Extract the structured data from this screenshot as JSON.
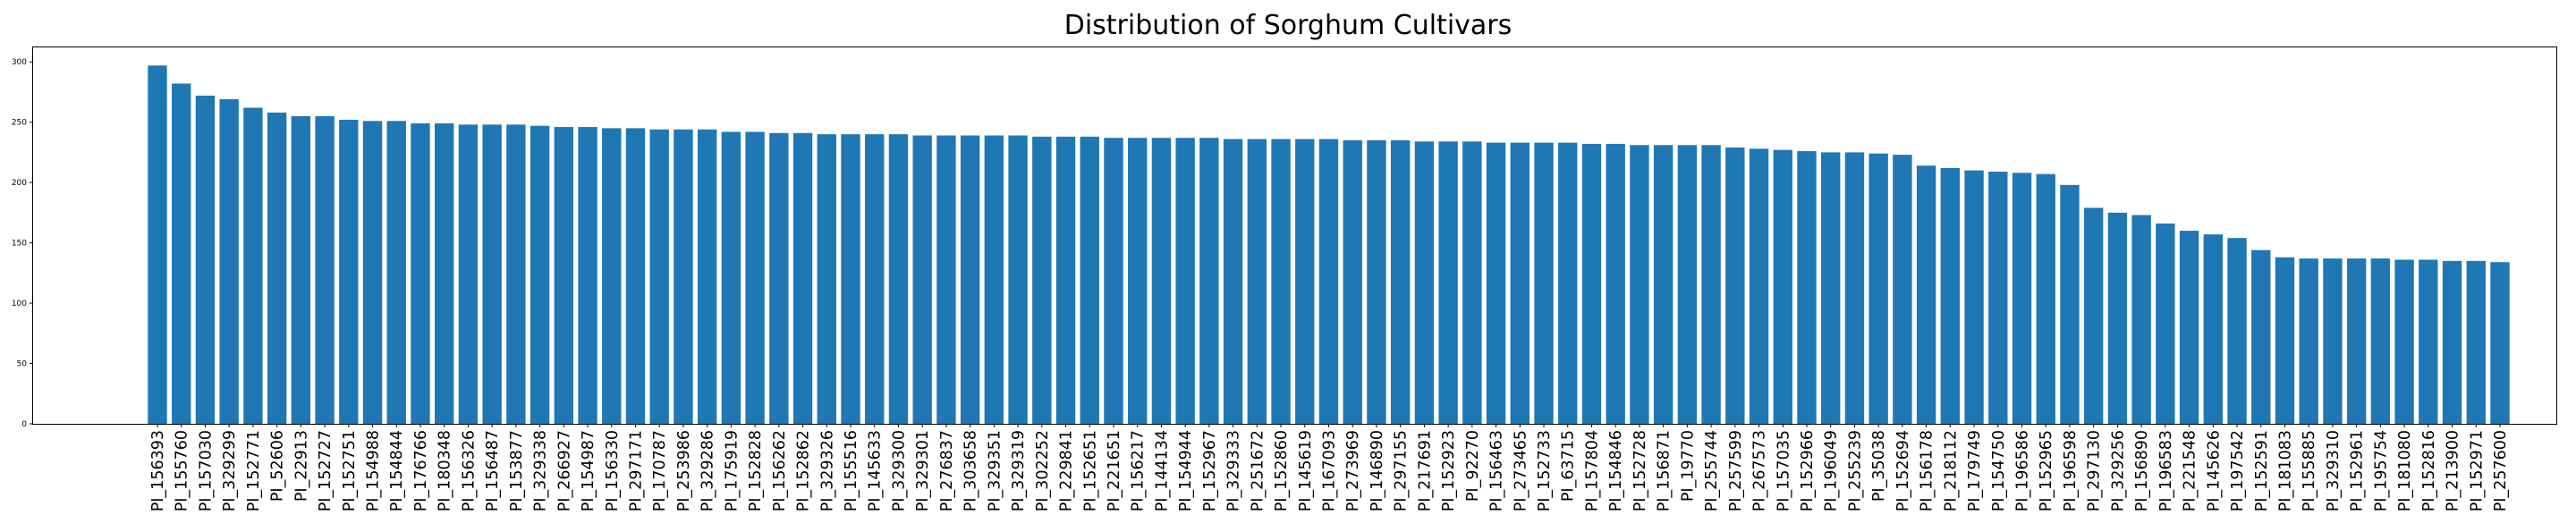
{
  "chart_data": {
    "type": "bar",
    "title": "Distribution of Sorghum Cultivars",
    "xlabel": "",
    "ylabel": "",
    "ylim": [
      0,
      312
    ],
    "yticks": [
      0,
      50,
      100,
      150,
      200,
      250,
      300
    ],
    "grid": false,
    "legend": "none",
    "bar_color": "#1f77b4",
    "categories": [
      "PI_156393",
      "PI_155760",
      "PI_157030",
      "PI_329299",
      "PI_152771",
      "PI_52606",
      "PI_22913",
      "PI_152727",
      "PI_152751",
      "PI_154988",
      "PI_154844",
      "PI_176766",
      "PI_180348",
      "PI_156326",
      "PI_156487",
      "PI_153877",
      "PI_329338",
      "PI_266927",
      "PI_154987",
      "PI_156330",
      "PI_297171",
      "PI_170787",
      "PI_253986",
      "PI_329286",
      "PI_175919",
      "PI_152828",
      "PI_156262",
      "PI_152862",
      "PI_329326",
      "PI_155516",
      "PI_145633",
      "PI_329300",
      "PI_329301",
      "PI_276837",
      "PI_303658",
      "PI_329351",
      "PI_329319",
      "PI_302252",
      "PI_229841",
      "PI_152651",
      "PI_221651",
      "PI_156217",
      "PI_144134",
      "PI_154944",
      "PI_152967",
      "PI_329333",
      "PI_251672",
      "PI_152860",
      "PI_145619",
      "PI_167093",
      "PI_273969",
      "PI_146890",
      "PI_297155",
      "PI_217691",
      "PI_152923",
      "PI_92270",
      "PI_156463",
      "PI_273465",
      "PI_152733",
      "PI_63715",
      "PI_157804",
      "PI_154846",
      "PI_152728",
      "PI_156871",
      "PI_19770",
      "PI_255744",
      "PI_257599",
      "PI_267573",
      "PI_157035",
      "PI_152966",
      "PI_196049",
      "PI_255239",
      "PI_35038",
      "PI_152694",
      "PI_156178",
      "PI_218112",
      "PI_179749",
      "PI_154750",
      "PI_196586",
      "PI_152965",
      "PI_196598",
      "PI_297130",
      "PI_329256",
      "PI_156890",
      "PI_196583",
      "PI_221548",
      "PI_145626",
      "PI_197542",
      "PI_152591",
      "PI_181083",
      "PI_155885",
      "PI_329310",
      "PI_152961",
      "PI_195754",
      "PI_181080",
      "PI_152816",
      "PI_213900",
      "PI_152971",
      "PI_257600"
    ],
    "values": [
      297,
      282,
      272,
      269,
      262,
      258,
      255,
      255,
      252,
      251,
      251,
      249,
      249,
      248,
      248,
      248,
      247,
      246,
      246,
      245,
      245,
      244,
      244,
      244,
      242,
      242,
      241,
      241,
      240,
      240,
      240,
      240,
      239,
      239,
      239,
      239,
      239,
      238,
      238,
      238,
      237,
      237,
      237,
      237,
      237,
      236,
      236,
      236,
      236,
      236,
      235,
      235,
      235,
      234,
      234,
      234,
      233,
      233,
      233,
      233,
      232,
      232,
      231,
      231,
      231,
      231,
      229,
      228,
      227,
      226,
      225,
      225,
      224,
      223,
      214,
      212,
      210,
      209,
      208,
      207,
      198,
      179,
      175,
      173,
      166,
      160,
      157,
      154,
      144,
      138,
      137,
      137,
      137,
      137,
      136,
      136,
      135,
      135,
      134
    ]
  }
}
